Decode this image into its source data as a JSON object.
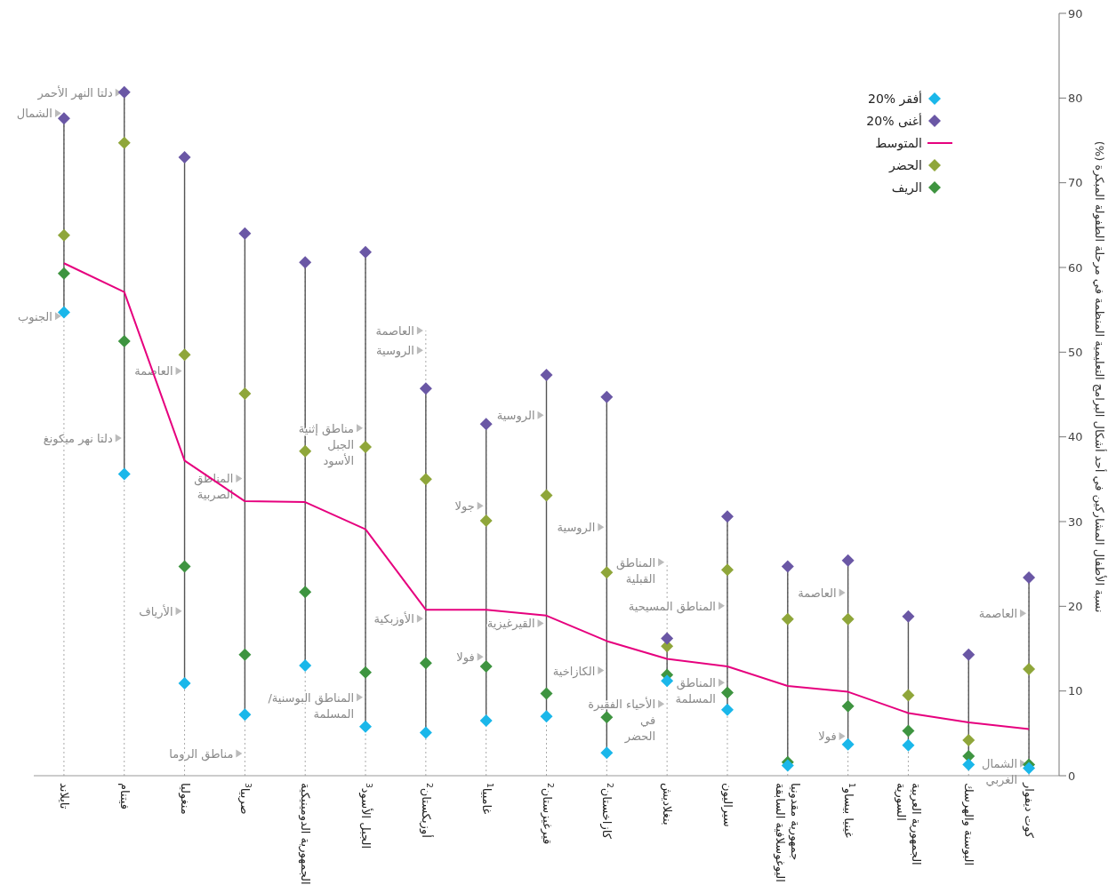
{
  "chart_data": {
    "type": "scatter",
    "ylabel": "نسبة الأطفال المشاركين في أحد أشكال البرامج التعليمية المنظمة في مرحلة الطفولة المبكرة (%)",
    "categories": [
      "تايلاند",
      "فيتنام",
      "منغوليا",
      "صربيا$^{3}$",
      "الجمهورية الدومينيكية",
      "الجبل الأسود$^{3}$",
      "أوزبكستان$^{2}$",
      "غامبيا$^{1}$",
      "قيرغيزستان$^{2}$",
      "كازاخستان$^{2}$",
      "بنغلاديش",
      "سيراليون",
      "جمهورية مقدونيا\nاليوغوسلافية السابقة",
      "غينيا بيساو$^{1}$",
      "الجمهورية العربية\nالسورية",
      "البوسنة والهرسك",
      "كوت ديفوار"
    ],
    "series": [
      {
        "name": "أفقر %20",
        "color": "#1ab7ea",
        "values": [
          54.7,
          35.6,
          10.9,
          7.2,
          13.0,
          5.8,
          5.1,
          6.5,
          7.0,
          2.7,
          11.2,
          7.8,
          1.2,
          3.7,
          3.6,
          1.3,
          0.9
        ]
      },
      {
        "name": "أغنى %20",
        "color": "#6a57a5",
        "values": [
          77.6,
          80.7,
          73.0,
          64.0,
          60.6,
          61.8,
          45.7,
          41.5,
          47.3,
          44.7,
          16.2,
          30.6,
          24.7,
          25.4,
          18.8,
          14.3,
          23.4
        ]
      },
      {
        "name": "المتوسط",
        "type": "line",
        "marker": "none",
        "color": "#e6007e",
        "values": [
          60.5,
          57.1,
          37.2,
          32.4,
          32.3,
          29.1,
          19.6,
          19.6,
          18.9,
          15.9,
          13.8,
          12.9,
          10.6,
          9.9,
          7.4,
          6.3,
          5.5
        ]
      },
      {
        "name": "الحضر",
        "color": "#8fa63a",
        "values": [
          63.8,
          74.7,
          49.7,
          45.1,
          38.3,
          38.8,
          35.0,
          30.1,
          33.1,
          24.0,
          15.3,
          24.3,
          18.5,
          18.5,
          9.5,
          4.2,
          12.6
        ]
      },
      {
        "name": "الريف",
        "color": "#3e9440",
        "values": [
          59.3,
          51.3,
          24.7,
          14.3,
          21.7,
          12.2,
          13.3,
          12.9,
          9.7,
          6.9,
          11.9,
          9.8,
          1.6,
          8.2,
          5.3,
          2.3,
          1.3
        ]
      }
    ],
    "ylim": [
      0,
      90
    ],
    "yticks": [
      0,
      10,
      20,
      30,
      40,
      50,
      60,
      70,
      80,
      90
    ],
    "legend": "top right",
    "marker": "diamond",
    "grid": "x",
    "annotations": [
      "الشمال",
      "الجنوب",
      "دلتا النهر الأحمر",
      "دلتا نهر ميكونغ",
      "العاصمة",
      "الأرياف",
      "المناطق\nالصربية",
      "مناطق الروما",
      "مناطق إثنية\nالجبل\nالأسود",
      "المناطق البوسنية/\nالمسلمة",
      "العاصمة",
      "الروسية",
      "الأوزبكية",
      "جولا",
      "فولا",
      "الروسية",
      "القيرغيزية",
      "الروسية",
      "الكازاخية",
      "المناطق\nالقبلية",
      "الأحياء الفقيرة\nفي\nالحضر",
      "المناطق المسيحية",
      "المناطق\nالمسلمة",
      "العاصمة",
      "فولا",
      "العاصمة",
      "الشمال\nالغربي"
    ]
  }
}
